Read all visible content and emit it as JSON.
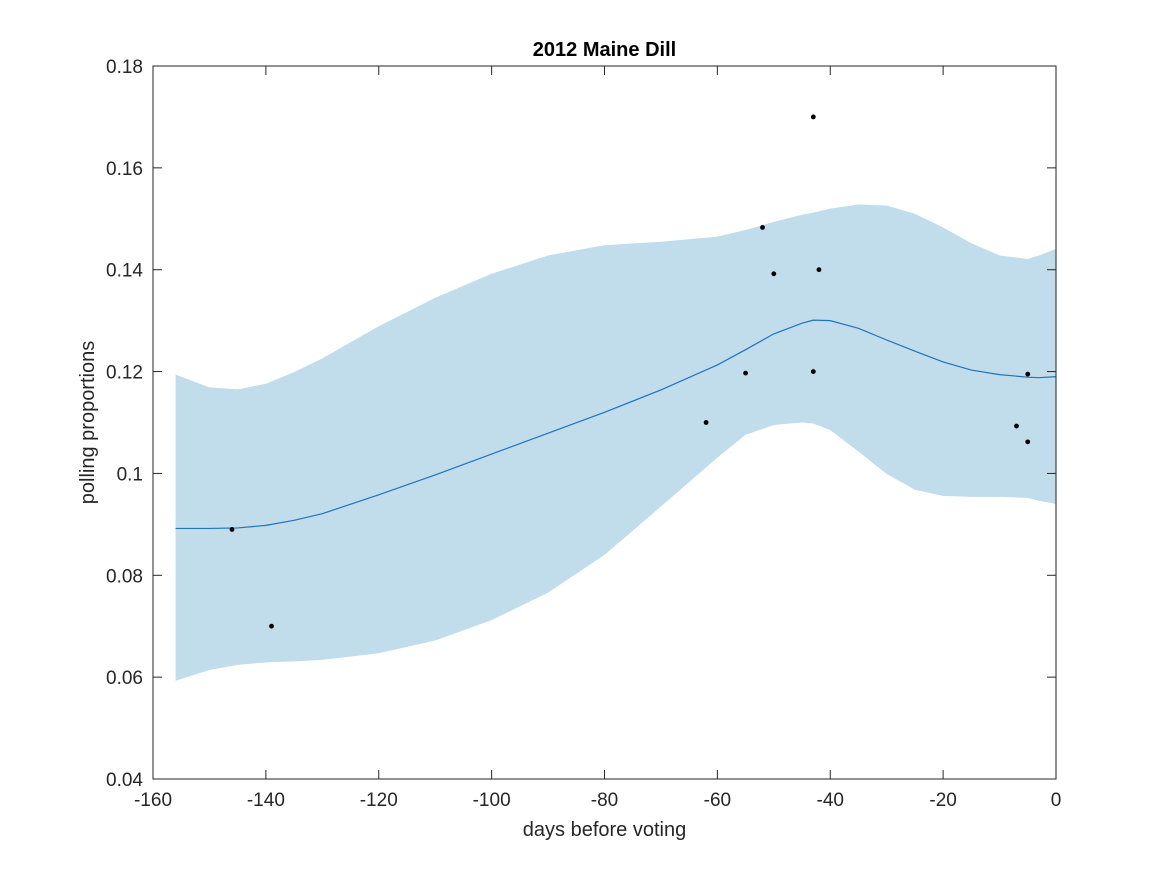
{
  "chart_data": {
    "type": "line",
    "title": "2012 Maine Dill",
    "xlabel": "days before voting",
    "ylabel": "polling proportions",
    "xlim": [
      -160,
      0
    ],
    "ylim": [
      0.04,
      0.18
    ],
    "xticks": [
      -160,
      -140,
      -120,
      -100,
      -80,
      -60,
      -40,
      -20,
      0
    ],
    "xtick_labels": [
      "-160",
      "-140",
      "-120",
      "-100",
      "-80",
      "-60",
      "-40",
      "-20",
      "0"
    ],
    "yticks": [
      0.04,
      0.06,
      0.08,
      0.1,
      0.12,
      0.14,
      0.16,
      0.18
    ],
    "ytick_labels": [
      "0.04",
      "0.06",
      "0.08",
      "0.1",
      "0.12",
      "0.14",
      "0.16",
      "0.18"
    ],
    "grid": false,
    "colors": {
      "band": "#c1dcea",
      "line": "#1f74bd",
      "points": "#000000",
      "axes": "#262626"
    },
    "trend": {
      "x": [
        -156,
        -150,
        -145,
        -140,
        -135,
        -130,
        -120,
        -110,
        -100,
        -90,
        -80,
        -70,
        -60,
        -55,
        -50,
        -45,
        -43,
        -40,
        -35,
        -30,
        -25,
        -20,
        -15,
        -10,
        -5,
        -3,
        0
      ],
      "y": [
        0.0892,
        0.0892,
        0.0893,
        0.0898,
        0.0908,
        0.0921,
        0.0958,
        0.0997,
        0.1038,
        0.1079,
        0.112,
        0.1164,
        0.1213,
        0.1243,
        0.1274,
        0.1295,
        0.1301,
        0.13,
        0.1285,
        0.1262,
        0.124,
        0.1219,
        0.1203,
        0.1194,
        0.1189,
        0.1188,
        0.119
      ]
    },
    "band": {
      "x": [
        -156,
        -150,
        -145,
        -140,
        -135,
        -130,
        -120,
        -110,
        -100,
        -90,
        -80,
        -70,
        -60,
        -55,
        -50,
        -45,
        -43,
        -40,
        -35,
        -30,
        -25,
        -20,
        -15,
        -10,
        -5,
        -3,
        0
      ],
      "upper": [
        0.1194,
        0.1169,
        0.1165,
        0.1176,
        0.1199,
        0.1226,
        0.1289,
        0.1345,
        0.1392,
        0.1428,
        0.1448,
        0.1455,
        0.1465,
        0.1478,
        0.1494,
        0.1508,
        0.1512,
        0.152,
        0.1528,
        0.1526,
        0.151,
        0.1483,
        0.1452,
        0.1428,
        0.1421,
        0.1428,
        0.1441
      ],
      "lower": [
        0.0593,
        0.0614,
        0.0624,
        0.0629,
        0.0631,
        0.0634,
        0.0647,
        0.0672,
        0.0712,
        0.0766,
        0.084,
        0.0935,
        0.1031,
        0.1076,
        0.1095,
        0.11,
        0.1098,
        0.1085,
        0.1043,
        0.0999,
        0.0968,
        0.0956,
        0.0954,
        0.0954,
        0.0952,
        0.0946,
        0.094
      ]
    },
    "points": [
      {
        "x": -146,
        "y": 0.089
      },
      {
        "x": -139,
        "y": 0.07
      },
      {
        "x": -62,
        "y": 0.11
      },
      {
        "x": -55,
        "y": 0.1197
      },
      {
        "x": -52,
        "y": 0.1483
      },
      {
        "x": -50,
        "y": 0.1392
      },
      {
        "x": -43,
        "y": 0.17
      },
      {
        "x": -43,
        "y": 0.12
      },
      {
        "x": -42,
        "y": 0.14
      },
      {
        "x": -7,
        "y": 0.1093
      },
      {
        "x": -5,
        "y": 0.1195
      },
      {
        "x": -5,
        "y": 0.1062
      }
    ]
  }
}
